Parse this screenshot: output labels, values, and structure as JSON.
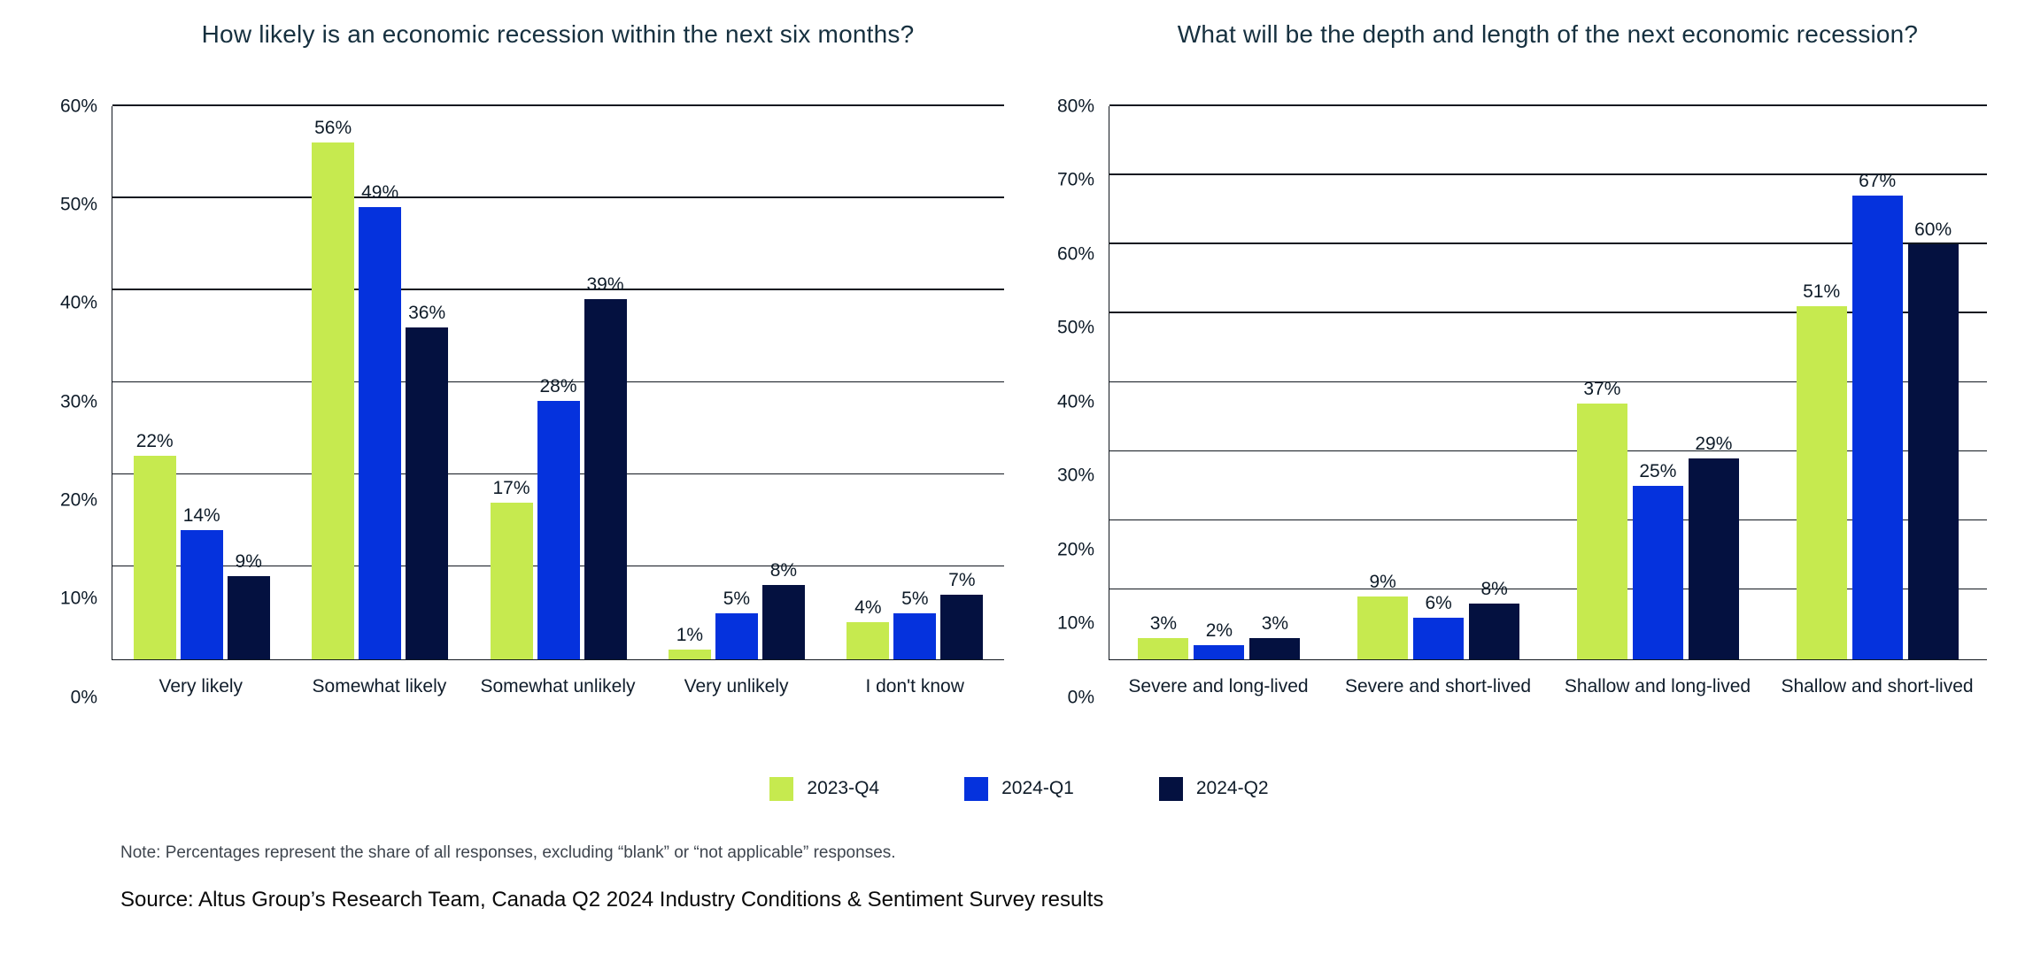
{
  "chart_data": [
    {
      "type": "bar",
      "title": "How likely is an economic recession within the next six months?",
      "categories": [
        "Very likely",
        "Somewhat likely",
        "Somewhat unlikely",
        "Very unlikely",
        "I don't know"
      ],
      "series": [
        {
          "name": "2023-Q4",
          "color": "#c6ea4f",
          "values": [
            22,
            56,
            17,
            1,
            4
          ]
        },
        {
          "name": "2024-Q1",
          "color": "#0532dd",
          "values": [
            14,
            49,
            28,
            5,
            5
          ]
        },
        {
          "name": "2024-Q2",
          "color": "#041140",
          "values": [
            9,
            36,
            39,
            8,
            7
          ]
        }
      ],
      "ymax": 60,
      "ylim": [
        0,
        60
      ],
      "tick_labels": [
        "60%",
        "50%",
        "40%",
        "30%",
        "20%",
        "10%",
        "0%"
      ],
      "value_suffix": "%",
      "grid": true,
      "xlabel": "",
      "ylabel": "",
      "legend_position": "bottom-center"
    },
    {
      "type": "bar",
      "title": "What will be the depth and length of the next economic recession?",
      "categories": [
        "Severe and long-lived",
        "Severe and short-lived",
        "Shallow and long-lived",
        "Shallow and short-lived"
      ],
      "series": [
        {
          "name": "2023-Q4",
          "color": "#c6ea4f",
          "values": [
            3,
            9,
            37,
            51
          ]
        },
        {
          "name": "2024-Q1",
          "color": "#0532dd",
          "values": [
            2,
            6,
            25,
            67
          ]
        },
        {
          "name": "2024-Q2",
          "color": "#041140",
          "values": [
            3,
            8,
            29,
            60
          ]
        }
      ],
      "ymax": 80,
      "ylim": [
        0,
        80
      ],
      "tick_labels": [
        "80%",
        "70%",
        "60%",
        "50%",
        "40%",
        "30%",
        "20%",
        "10%",
        "0%"
      ],
      "value_suffix": "%",
      "grid": true,
      "xlabel": "",
      "ylabel": "",
      "legend_position": "bottom-center"
    }
  ],
  "legend": {
    "items": [
      {
        "label": "2023-Q4",
        "color": "#c6ea4f"
      },
      {
        "label": "2024-Q1",
        "color": "#0532dd"
      },
      {
        "label": "2024-Q2",
        "color": "#041140"
      }
    ]
  },
  "footer": {
    "note": "Note: Percentages represent the share of all responses, excluding “blank” or “not applicable” responses.",
    "source": "Source: Altus Group’s Research Team, Canada Q2 2024 Industry Conditions & Sentiment Survey results"
  },
  "colors": {
    "series_green": "#c6ea4f",
    "series_blue": "#0532dd",
    "series_navy": "#041140",
    "title_text": "#16303f",
    "grid_line": "#121820"
  }
}
